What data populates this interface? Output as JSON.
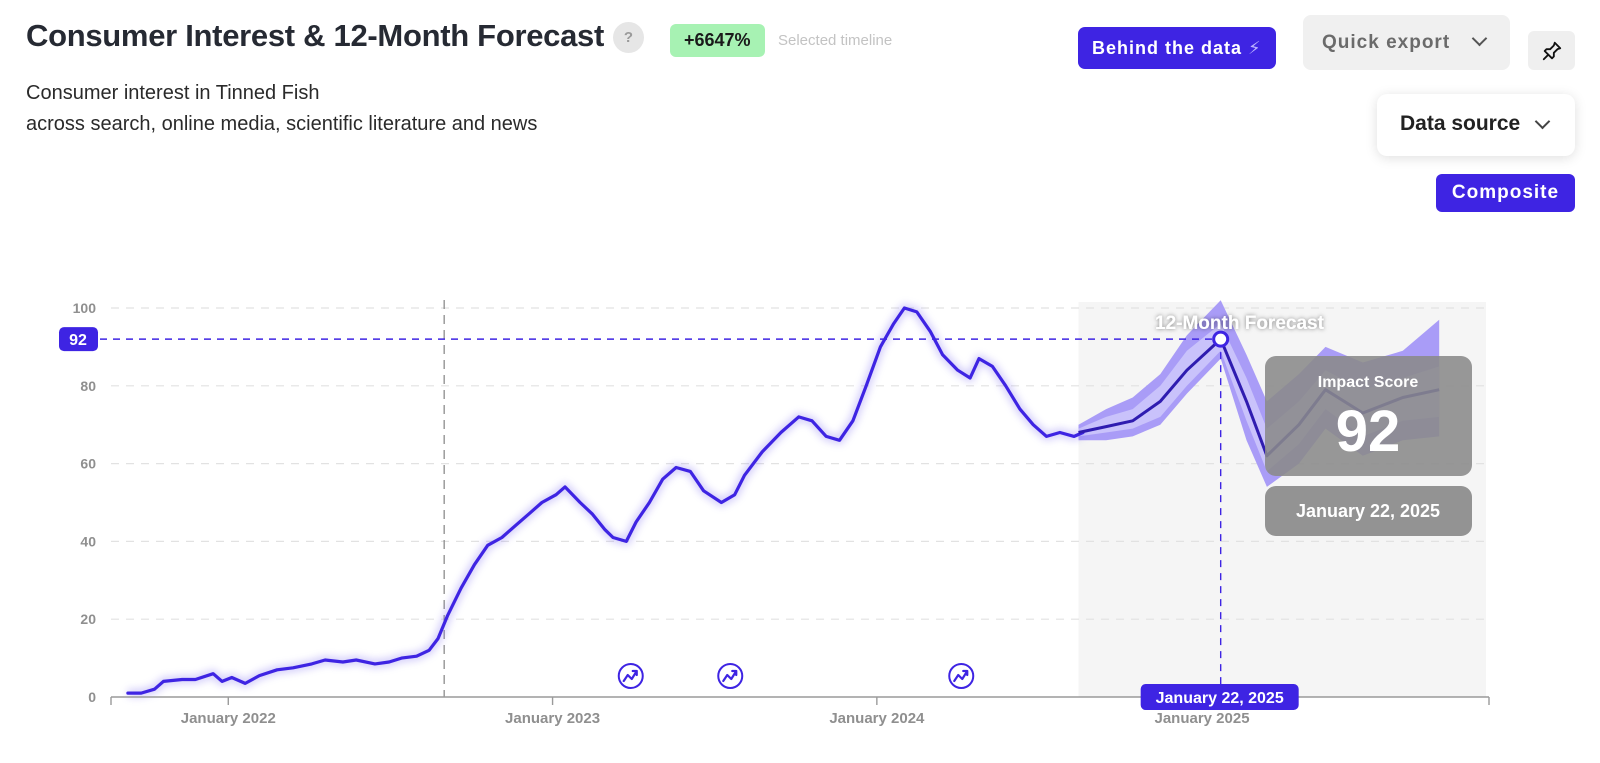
{
  "header": {
    "title": "Consumer Interest & 12-Month Forecast",
    "help": "?",
    "growth_badge": "+6647%",
    "growth_caption": "Selected timeline",
    "subtitle_line1": "Consumer interest in Tinned Fish",
    "subtitle_line2": "across search, online media, scientific literature and news"
  },
  "toolbar": {
    "behind_label": "Behind the data",
    "export_label": "Quick export",
    "pin_icon": "pin-icon",
    "data_source_label": "Data source",
    "composite_label": "Composite"
  },
  "colors": {
    "accent": "#3e24e3",
    "forecast_band_outer": "#a99cf7",
    "forecast_band_inner": "#c9c2fb",
    "forecast_bg": "#f5f5f5",
    "badge_green": "#a7f2b3",
    "tooltip_bg": "#8a8a8a"
  },
  "chart_data": {
    "type": "line",
    "ylim": [
      0,
      100
    ],
    "yticks": [
      0,
      20,
      40,
      60,
      80,
      100
    ],
    "xlim": [
      "2021-08-22",
      "2025-11-20"
    ],
    "xticks": [
      {
        "date": "2022-01-01",
        "label": "January 2022"
      },
      {
        "date": "2023-01-01",
        "label": "January 2023"
      },
      {
        "date": "2024-01-01",
        "label": "January 2024"
      },
      {
        "date": "2025-01-01",
        "label": "January 2025"
      }
    ],
    "grid": true,
    "divider_date": "2022-09-01",
    "forecast_start": "2024-08-15",
    "forecast_label": "12-Month Forecast",
    "series": [
      {
        "values": [
          [
            "2021-09-10",
            1
          ],
          [
            "2021-09-25",
            1
          ],
          [
            "2021-10-10",
            2
          ],
          [
            "2021-10-20",
            4
          ],
          [
            "2021-11-10",
            4.5
          ],
          [
            "2021-11-25",
            4.5
          ],
          [
            "2021-12-15",
            6
          ],
          [
            "2021-12-25",
            4
          ],
          [
            "2022-01-05",
            5
          ],
          [
            "2022-01-20",
            3.5
          ],
          [
            "2022-02-05",
            5.5
          ],
          [
            "2022-02-25",
            7
          ],
          [
            "2022-03-15",
            7.5
          ],
          [
            "2022-04-05",
            8.5
          ],
          [
            "2022-04-20",
            9.5
          ],
          [
            "2022-05-10",
            9
          ],
          [
            "2022-05-25",
            9.5
          ],
          [
            "2022-06-15",
            8.5
          ],
          [
            "2022-07-01",
            9
          ],
          [
            "2022-07-15",
            10
          ],
          [
            "2022-08-01",
            10.5
          ],
          [
            "2022-08-15",
            12
          ],
          [
            "2022-08-25",
            15
          ],
          [
            "2022-09-05",
            21
          ],
          [
            "2022-09-20",
            28
          ],
          [
            "2022-10-05",
            34
          ],
          [
            "2022-10-20",
            39
          ],
          [
            "2022-11-05",
            41
          ],
          [
            "2022-11-20",
            44
          ],
          [
            "2022-12-05",
            47
          ],
          [
            "2022-12-20",
            50
          ],
          [
            "2023-01-05",
            52
          ],
          [
            "2023-01-15",
            54
          ],
          [
            "2023-02-01",
            50
          ],
          [
            "2023-02-15",
            47
          ],
          [
            "2023-03-01",
            43
          ],
          [
            "2023-03-10",
            41
          ],
          [
            "2023-03-25",
            40
          ],
          [
            "2023-04-05",
            45
          ],
          [
            "2023-04-20",
            50
          ],
          [
            "2023-05-05",
            56
          ],
          [
            "2023-05-20",
            59
          ],
          [
            "2023-06-05",
            58
          ],
          [
            "2023-06-20",
            53
          ],
          [
            "2023-07-10",
            50
          ],
          [
            "2023-07-25",
            52
          ],
          [
            "2023-08-05",
            57
          ],
          [
            "2023-08-25",
            63
          ],
          [
            "2023-09-15",
            68
          ],
          [
            "2023-10-05",
            72
          ],
          [
            "2023-10-20",
            71
          ],
          [
            "2023-11-05",
            67
          ],
          [
            "2023-11-20",
            66
          ],
          [
            "2023-12-05",
            71
          ],
          [
            "2023-12-20",
            80
          ],
          [
            "2024-01-05",
            90
          ],
          [
            "2024-01-20",
            96
          ],
          [
            "2024-02-01",
            100
          ],
          [
            "2024-02-15",
            99
          ],
          [
            "2024-03-01",
            94
          ],
          [
            "2024-03-15",
            88
          ],
          [
            "2024-04-01",
            84
          ],
          [
            "2024-04-15",
            82
          ],
          [
            "2024-04-25",
            87
          ],
          [
            "2024-05-10",
            85
          ],
          [
            "2024-05-25",
            80
          ],
          [
            "2024-06-10",
            74
          ],
          [
            "2024-06-25",
            70
          ],
          [
            "2024-07-10",
            67
          ],
          [
            "2024-07-25",
            68
          ],
          [
            "2024-08-10",
            67
          ],
          [
            "2024-08-20",
            68
          ]
        ]
      }
    ],
    "forecast": {
      "center": [
        [
          "2024-08-15",
          68
        ],
        [
          "2024-09-15",
          69.5
        ],
        [
          "2024-10-15",
          71
        ],
        [
          "2024-11-15",
          76
        ],
        [
          "2024-12-15",
          84
        ],
        [
          "2025-01-22",
          92
        ],
        [
          "2025-02-20",
          76
        ],
        [
          "2025-03-15",
          62
        ],
        [
          "2025-04-20",
          70
        ],
        [
          "2025-05-20",
          79
        ],
        [
          "2025-07-01",
          73
        ],
        [
          "2025-08-15",
          77
        ],
        [
          "2025-09-25",
          79
        ]
      ],
      "inner_band": [
        [
          "2024-08-15",
          67,
          69
        ],
        [
          "2024-09-15",
          68,
          72
        ],
        [
          "2024-10-15",
          69,
          74
        ],
        [
          "2024-11-15",
          72,
          80
        ],
        [
          "2024-12-15",
          80,
          89
        ],
        [
          "2025-01-22",
          89,
          96
        ],
        [
          "2025-02-20",
          71,
          82
        ],
        [
          "2025-03-15",
          58,
          69
        ],
        [
          "2025-04-20",
          65,
          76
        ],
        [
          "2025-05-20",
          74,
          84
        ],
        [
          "2025-07-01",
          67,
          79
        ],
        [
          "2025-08-15",
          71,
          82
        ],
        [
          "2025-09-25",
          72,
          85
        ]
      ],
      "outer_band": [
        [
          "2024-08-15",
          66,
          70
        ],
        [
          "2024-09-15",
          66,
          74
        ],
        [
          "2024-10-15",
          67,
          77
        ],
        [
          "2024-11-15",
          70,
          83
        ],
        [
          "2024-12-15",
          78,
          93
        ],
        [
          "2025-01-22",
          87,
          102
        ],
        [
          "2025-02-20",
          66,
          88
        ],
        [
          "2025-03-15",
          54,
          76
        ],
        [
          "2025-04-20",
          60,
          83
        ],
        [
          "2025-05-20",
          69,
          90
        ],
        [
          "2025-07-01",
          62,
          86
        ],
        [
          "2025-08-15",
          66,
          89
        ],
        [
          "2025-09-25",
          67,
          97
        ]
      ]
    },
    "event_markers": [
      "2023-03-30",
      "2023-07-20",
      "2024-04-05"
    ],
    "event_icon": "trend-icon",
    "selection": {
      "date": "2025-01-22",
      "value": 92,
      "y_label": "92",
      "x_label": "January 22, 2025"
    },
    "tooltip": {
      "title": "Impact Score",
      "value": "92",
      "date": "January 22, 2025"
    }
  }
}
